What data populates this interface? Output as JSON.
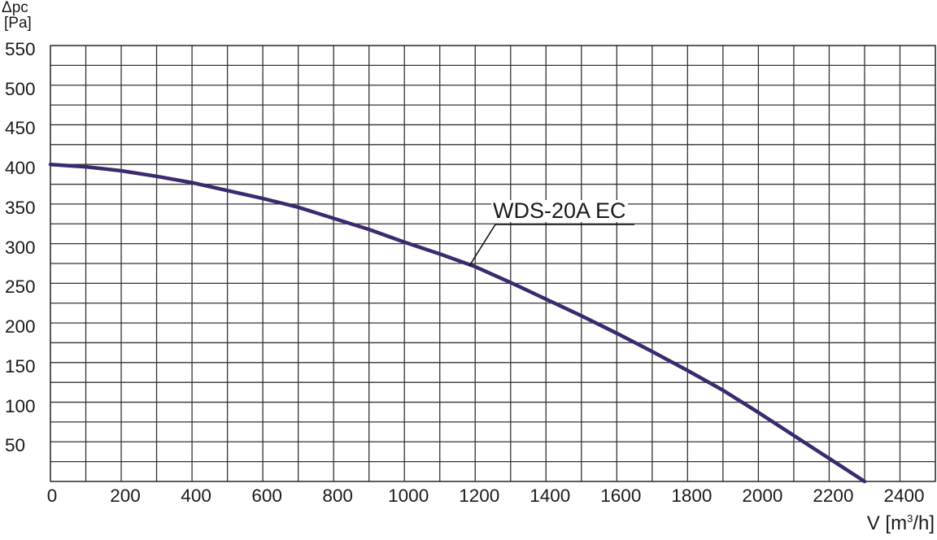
{
  "chart_data": {
    "type": "line",
    "title": "",
    "xlabel": "V [m³/h]",
    "ylabel": "Δpc [Pa]",
    "xlim": [
      0,
      2500
    ],
    "ylim": [
      0,
      550
    ],
    "grid": true,
    "grid_x_step": 100,
    "grid_y_step": 25,
    "x_ticks": [
      0,
      200,
      400,
      600,
      800,
      1000,
      1200,
      1400,
      1600,
      1800,
      2000,
      2200,
      2400
    ],
    "y_ticks": [
      50,
      100,
      150,
      200,
      250,
      300,
      350,
      400,
      450,
      500,
      550
    ],
    "legend_position": "inline-annotation",
    "series": [
      {
        "name": "WDS-20A EC",
        "color": "#3b2a6e",
        "x": [
          0,
          100,
          200,
          300,
          400,
          500,
          600,
          700,
          800,
          900,
          1000,
          1100,
          1200,
          1300,
          1400,
          1500,
          1600,
          1700,
          1800,
          1900,
          2000,
          2100,
          2200,
          2300
        ],
        "values": [
          400,
          397,
          392,
          385,
          377,
          367,
          357,
          346,
          332,
          318,
          302,
          287,
          271,
          251,
          230,
          209,
          187,
          164,
          140,
          115,
          87,
          58,
          29,
          0
        ]
      }
    ],
    "annotations": [
      {
        "text": "WDS-20A EC",
        "points_to": {
          "x": 1180,
          "y": 272
        }
      }
    ]
  },
  "axis": {
    "y_title_line1": "Δpc",
    "y_title_line2": "[Pa]",
    "x_title_prefix": "V [m",
    "x_title_sup": "3",
    "x_title_suffix": "/h]"
  },
  "series_label": "WDS-20A EC"
}
